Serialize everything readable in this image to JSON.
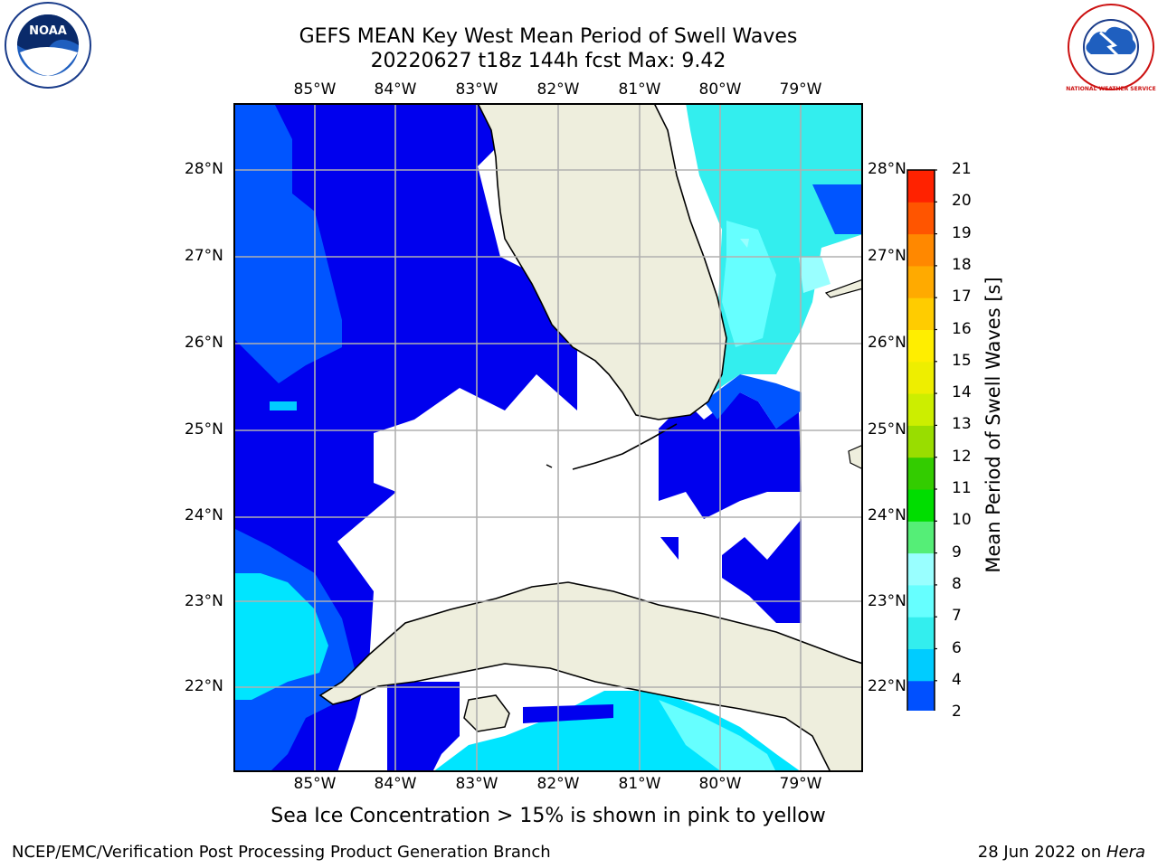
{
  "title": {
    "line1": "GEFS MEAN Key West Mean Period of Swell Waves",
    "line2": "20220627 t18z 144h fcst   Max: 9.42"
  },
  "map": {
    "lon_ticks": [
      "85°W",
      "84°W",
      "83°W",
      "82°W",
      "81°W",
      "80°W",
      "79°W"
    ],
    "lat_ticks": [
      "28°N",
      "27°N",
      "26°N",
      "25°N",
      "24°N",
      "23°N",
      "22°N"
    ],
    "colors": {
      "land": "#eeeedd",
      "grid": "#b0b0b0",
      "frame": "#000000"
    }
  },
  "colorbar": {
    "label": "Mean Period of Swell Waves [s]",
    "ticks": [
      "2",
      "4",
      "6",
      "7",
      "8",
      "9",
      "10",
      "11",
      "12",
      "13",
      "14",
      "15",
      "16",
      "17",
      "18",
      "19",
      "20",
      "21"
    ],
    "colors": [
      "#0050ff",
      "#00ccff",
      "#33eeee",
      "#66ffff",
      "#99ffff",
      "#55ee77",
      "#00dd00",
      "#33cc00",
      "#99dd00",
      "#ccee00",
      "#eeee00",
      "#ffee00",
      "#ffcc00",
      "#ffaa00",
      "#ff8800",
      "#ff5500",
      "#ff2200"
    ],
    "under_color": "#0000ee"
  },
  "footer": {
    "note": "Sea Ice Concentration > 15% is shown in pink to yellow",
    "left_credit": "NCEP/EMC/Verification Post Processing Product Generation Branch",
    "right_credit_prefix": "28 Jun 2022 on ",
    "right_credit_host": "Hera"
  },
  "logos": {
    "noaa_text": "NOAA",
    "nws_text": "NATIONAL WEATHER SERVICE"
  }
}
